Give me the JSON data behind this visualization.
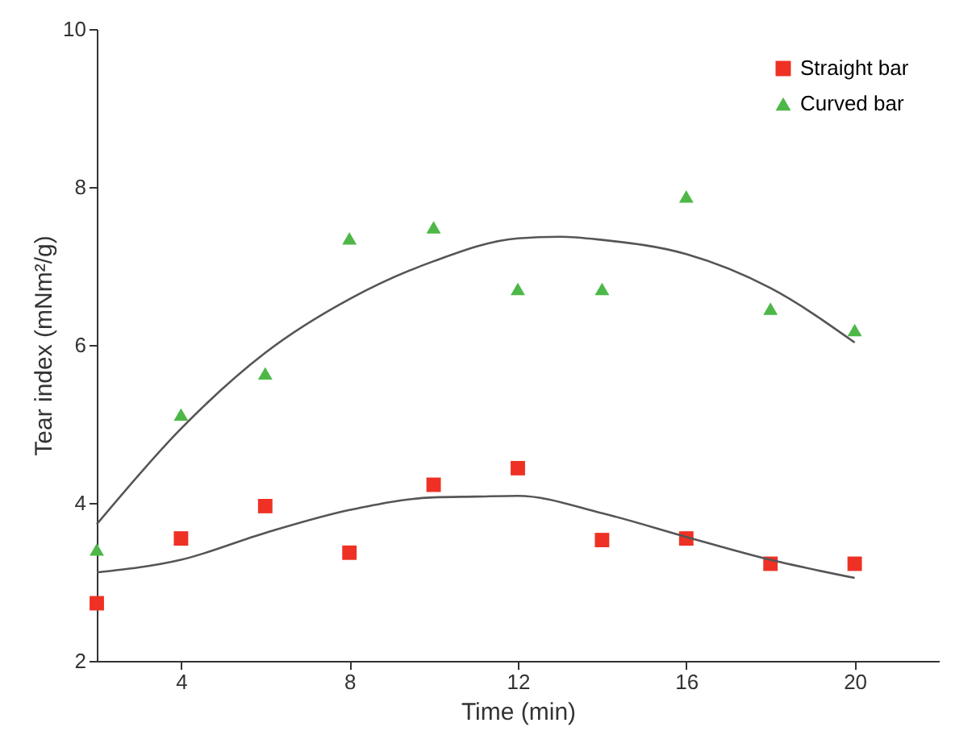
{
  "chart_data": {
    "type": "scatter",
    "xlabel": "Time (min)",
    "ylabel": "Tear index (mNm²/g)",
    "xlim": [
      2,
      22
    ],
    "xticks": [
      4,
      8,
      12,
      16,
      20
    ],
    "ylim": [
      2,
      10
    ],
    "yticks": [
      2,
      4,
      6,
      8,
      10
    ],
    "legend": "top right",
    "grid": false,
    "series": [
      {
        "name": "Straight bar",
        "color": "#ee3124",
        "marker": "square",
        "x": [
          2,
          4,
          6,
          8,
          10,
          12,
          14,
          16,
          18,
          20
        ],
        "values": [
          2.73,
          3.55,
          3.96,
          3.37,
          4.23,
          4.44,
          3.53,
          3.55,
          3.23,
          3.23
        ]
      },
      {
        "name": "Curved bar",
        "color": "#4db848",
        "marker": "triangle",
        "x": [
          2,
          4,
          6,
          8,
          10,
          12,
          14,
          16,
          18,
          20
        ],
        "values": [
          3.41,
          5.12,
          5.64,
          7.35,
          7.49,
          6.71,
          6.71,
          7.88,
          6.46,
          6.19
        ]
      },
      {
        "type": "line",
        "color": "#555555",
        "x": [
          2,
          4,
          6,
          8,
          10,
          11,
          12,
          14,
          16,
          18,
          20
        ],
        "values": [
          3.12,
          3.28,
          3.62,
          3.91,
          4.07,
          4.08,
          4.09,
          3.87,
          3.57,
          3.28,
          3.05
        ]
      },
      {
        "type": "line",
        "color": "#555555",
        "x": [
          2,
          4,
          6,
          8,
          10,
          12,
          13,
          14,
          16,
          18,
          20
        ],
        "values": [
          3.73,
          4.94,
          5.9,
          6.58,
          7.06,
          7.35,
          7.37,
          7.33,
          7.15,
          6.72,
          6.03
        ]
      }
    ]
  }
}
